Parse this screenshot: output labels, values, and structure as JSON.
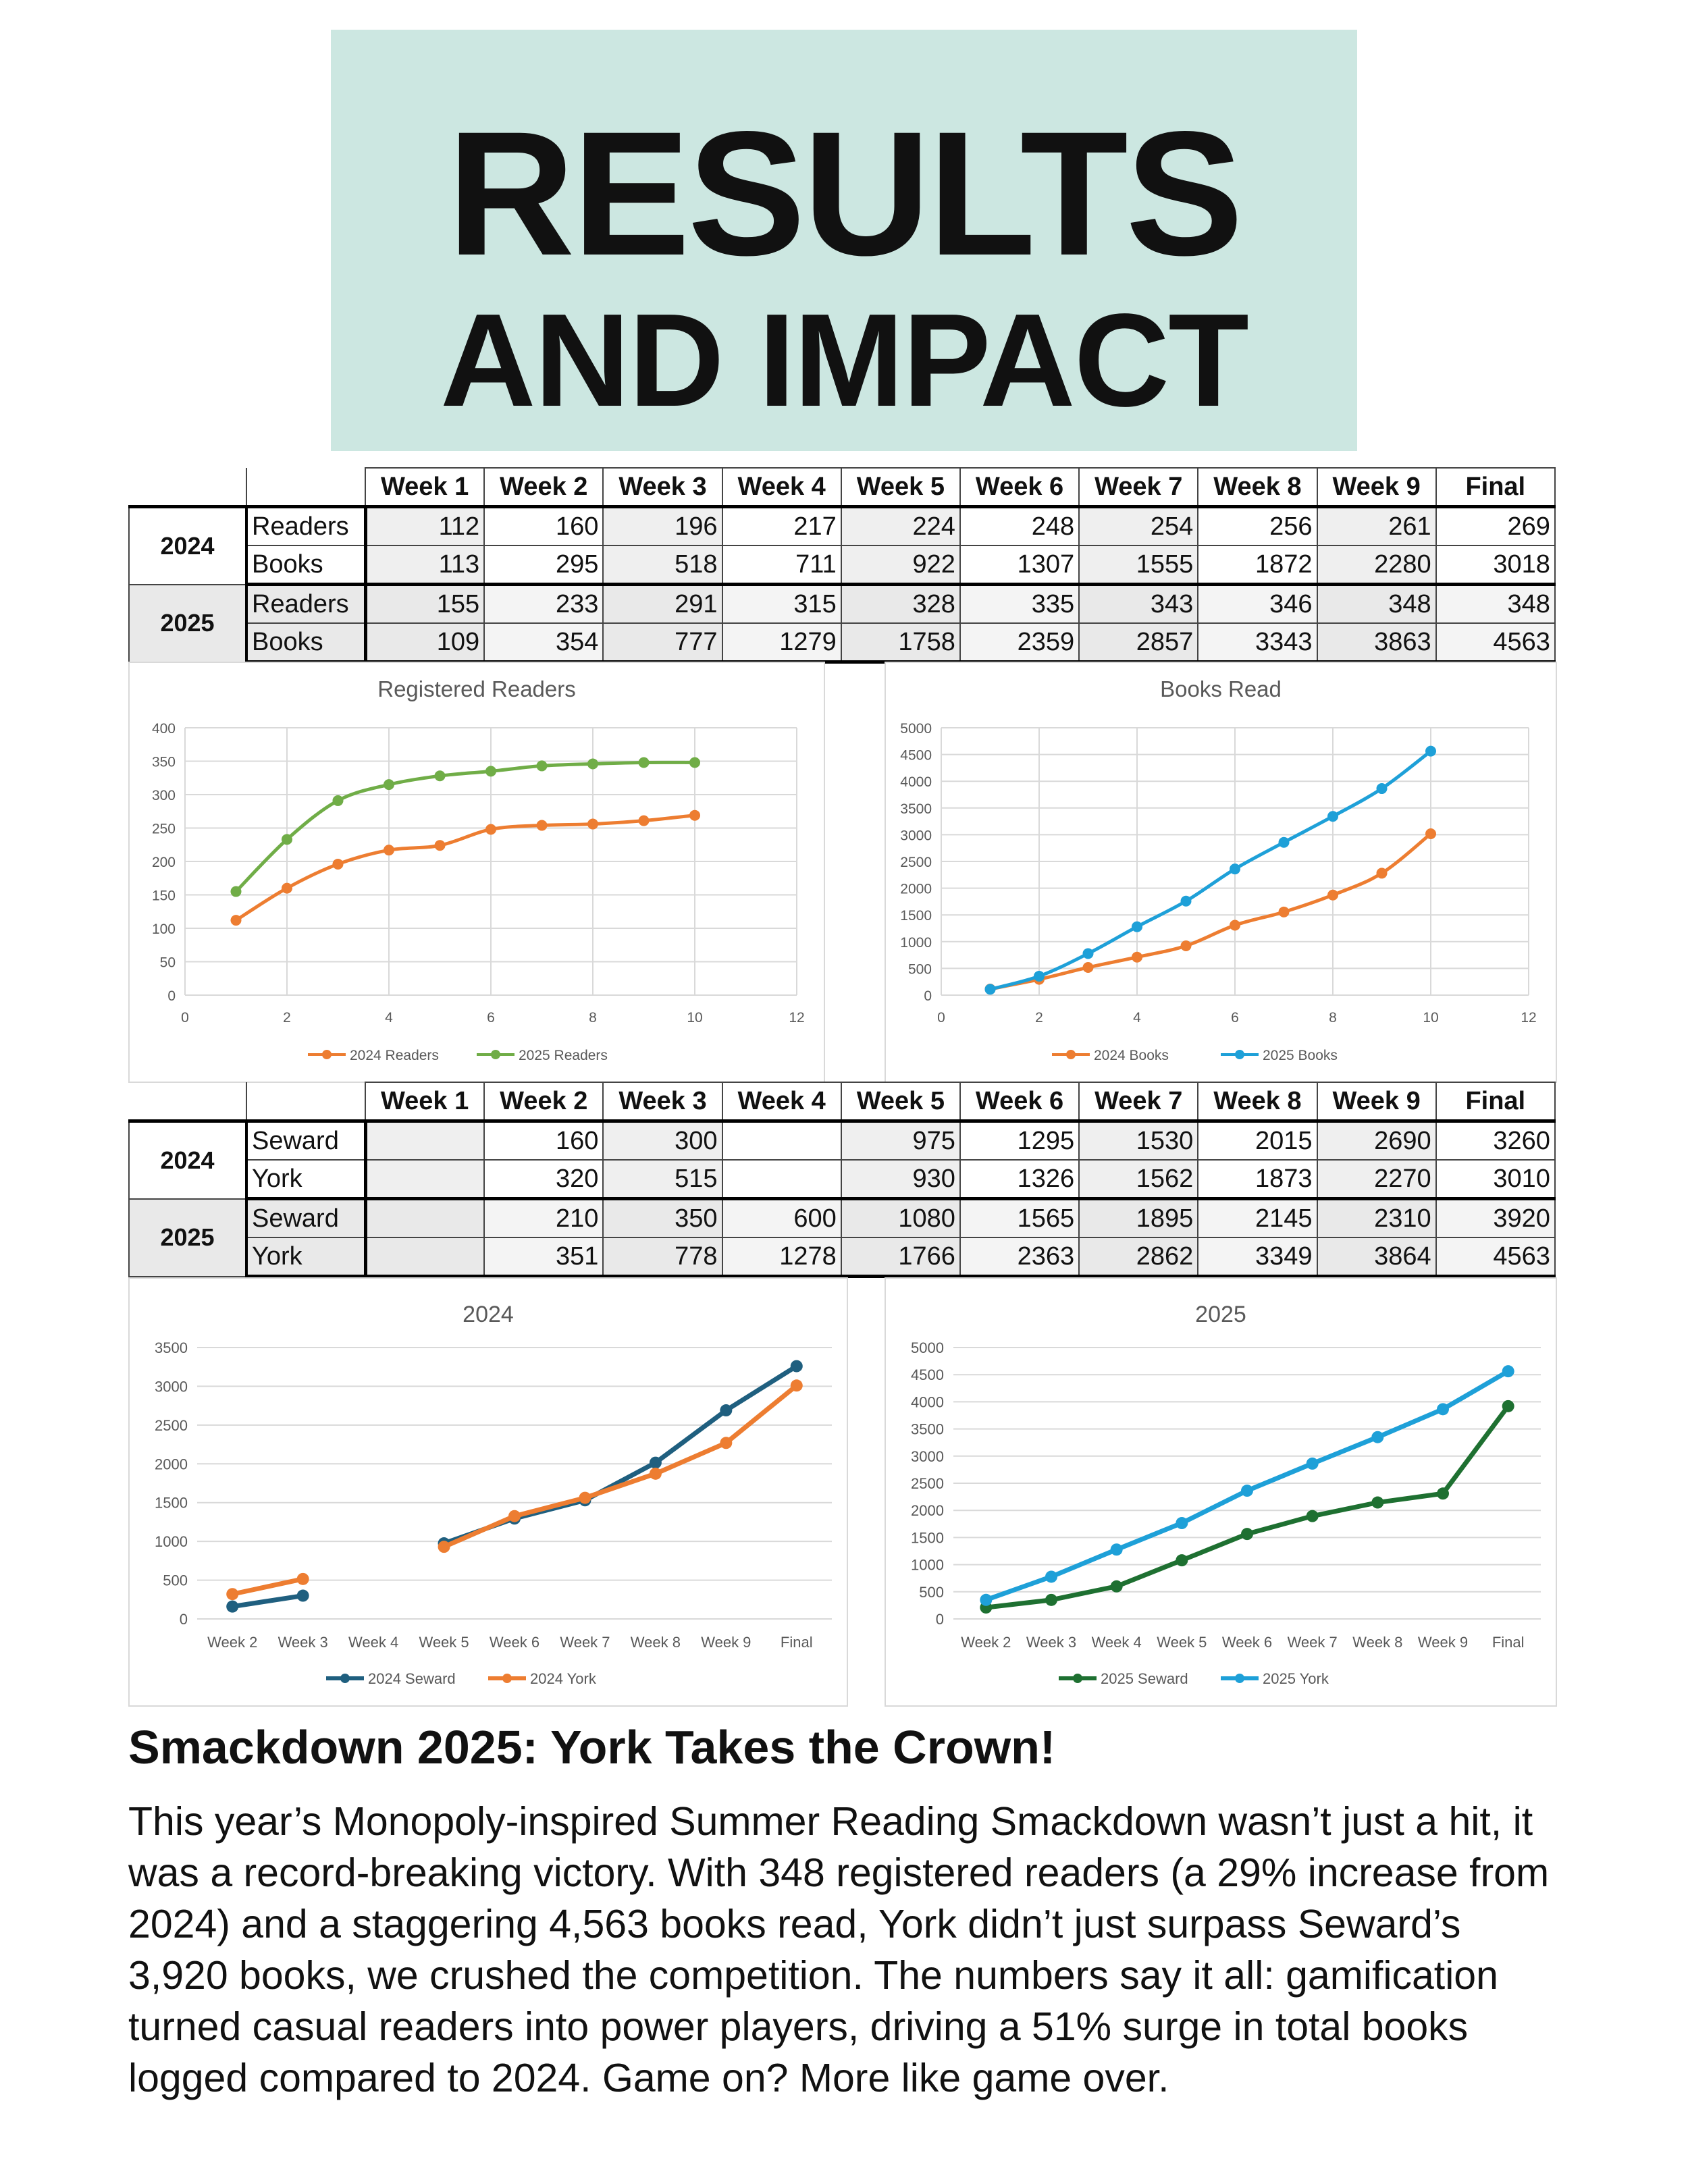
{
  "banner": {
    "line1": "RESULTS",
    "line2": "AND IMPACT"
  },
  "table1": {
    "headers": [
      "Week 1",
      "Week 2",
      "Week 3",
      "Week 4",
      "Week 5",
      "Week 6",
      "Week 7",
      "Week 8",
      "Week 9",
      "Final"
    ],
    "groups": [
      {
        "year": "2024",
        "rows": [
          {
            "label": "Readers",
            "values": [
              "112",
              "160",
              "196",
              "217",
              "224",
              "248",
              "254",
              "256",
              "261",
              "269"
            ]
          },
          {
            "label": "Books",
            "values": [
              "113",
              "295",
              "518",
              "711",
              "922",
              "1307",
              "1555",
              "1872",
              "2280",
              "3018"
            ]
          }
        ]
      },
      {
        "year": "2025",
        "rows": [
          {
            "label": "Readers",
            "values": [
              "155",
              "233",
              "291",
              "315",
              "328",
              "335",
              "343",
              "346",
              "348",
              "348"
            ]
          },
          {
            "label": "Books",
            "values": [
              "109",
              "354",
              "777",
              "1279",
              "1758",
              "2359",
              "2857",
              "3343",
              "3863",
              "4563"
            ]
          }
        ]
      }
    ]
  },
  "table2": {
    "headers": [
      "Week 1",
      "Week 2",
      "Week 3",
      "Week 4",
      "Week 5",
      "Week 6",
      "Week 7",
      "Week 8",
      "Week 9",
      "Final"
    ],
    "groups": [
      {
        "year": "2024",
        "rows": [
          {
            "label": "Seward",
            "values": [
              "",
              "160",
              "300",
              "",
              "975",
              "1295",
              "1530",
              "2015",
              "2690",
              "3260"
            ]
          },
          {
            "label": "York",
            "values": [
              "",
              "320",
              "515",
              "",
              "930",
              "1326",
              "1562",
              "1873",
              "2270",
              "3010"
            ]
          }
        ]
      },
      {
        "year": "2025",
        "rows": [
          {
            "label": "Seward",
            "values": [
              "",
              "210",
              "350",
              "600",
              "1080",
              "1565",
              "1895",
              "2145",
              "2310",
              "3920"
            ]
          },
          {
            "label": "York",
            "values": [
              "",
              "351",
              "778",
              "1278",
              "1766",
              "2363",
              "2862",
              "3349",
              "3864",
              "4563"
            ]
          }
        ]
      }
    ]
  },
  "chart_data": [
    {
      "id": "chart-readers",
      "type": "scatter",
      "smooth": true,
      "title": "Registered Readers",
      "xlim": [
        0,
        12
      ],
      "xticks": [
        0,
        2,
        4,
        6,
        8,
        10,
        12
      ],
      "ylim": [
        0,
        400
      ],
      "yticks": [
        0,
        50,
        100,
        150,
        200,
        250,
        300,
        350,
        400
      ],
      "grid": true,
      "legend": "bottom",
      "series": [
        {
          "name": "2024 Readers",
          "color": "#ed7d31",
          "x": [
            1,
            2,
            3,
            4,
            5,
            6,
            7,
            8,
            9,
            10
          ],
          "values": [
            112,
            160,
            196,
            217,
            224,
            248,
            254,
            256,
            261,
            269
          ]
        },
        {
          "name": "2025 Readers",
          "color": "#70ad47",
          "x": [
            1,
            2,
            3,
            4,
            5,
            6,
            7,
            8,
            9,
            10
          ],
          "values": [
            155,
            233,
            291,
            315,
            328,
            335,
            343,
            346,
            348,
            348
          ]
        }
      ]
    },
    {
      "id": "chart-books",
      "type": "scatter",
      "smooth": true,
      "title": "Books Read",
      "xlim": [
        0,
        12
      ],
      "xticks": [
        0,
        2,
        4,
        6,
        8,
        10,
        12
      ],
      "ylim": [
        0,
        5000
      ],
      "yticks": [
        0,
        500,
        1000,
        1500,
        2000,
        2500,
        3000,
        3500,
        4000,
        4500,
        5000
      ],
      "grid": true,
      "legend": "bottom",
      "series": [
        {
          "name": "2024 Books",
          "color": "#ed7d31",
          "x": [
            1,
            2,
            3,
            4,
            5,
            6,
            7,
            8,
            9,
            10
          ],
          "values": [
            113,
            295,
            518,
            711,
            922,
            1307,
            1555,
            1872,
            2280,
            3018
          ]
        },
        {
          "name": "2025 Books",
          "color": "#1ea0d8",
          "x": [
            1,
            2,
            3,
            4,
            5,
            6,
            7,
            8,
            9,
            10
          ],
          "values": [
            109,
            354,
            777,
            1279,
            1758,
            2359,
            2857,
            3343,
            3863,
            4563
          ]
        }
      ]
    },
    {
      "id": "chart-2024",
      "type": "line",
      "title": "2024",
      "categories": [
        "Week 2",
        "Week 3",
        "Week 4",
        "Week 5",
        "Week 6",
        "Week 7",
        "Week 8",
        "Week 9",
        "Final"
      ],
      "ylim": [
        0,
        3500
      ],
      "yticks": [
        0,
        500,
        1000,
        1500,
        2000,
        2500,
        3000,
        3500
      ],
      "grid": true,
      "legend": "bottom",
      "series": [
        {
          "name": "2024 Seward",
          "color": "#1f5f7f",
          "values": [
            160,
            300,
            null,
            975,
            1295,
            1530,
            2015,
            2690,
            3260
          ]
        },
        {
          "name": "2024 York",
          "color": "#ed7d31",
          "values": [
            320,
            515,
            null,
            930,
            1326,
            1562,
            1873,
            2270,
            3010
          ]
        }
      ]
    },
    {
      "id": "chart-2025",
      "type": "line",
      "title": "2025",
      "categories": [
        "Week 2",
        "Week 3",
        "Week 4",
        "Week 5",
        "Week 6",
        "Week 7",
        "Week 8",
        "Week 9",
        "Final"
      ],
      "ylim": [
        0,
        5000
      ],
      "yticks": [
        0,
        500,
        1000,
        1500,
        2000,
        2500,
        3000,
        3500,
        4000,
        4500,
        5000
      ],
      "grid": true,
      "legend": "bottom",
      "series": [
        {
          "name": "2025 Seward",
          "color": "#1e7031",
          "values": [
            210,
            350,
            600,
            1080,
            1565,
            1895,
            2145,
            2310,
            3920
          ]
        },
        {
          "name": "2025 York",
          "color": "#1ea0d8",
          "values": [
            351,
            778,
            1278,
            1766,
            2363,
            2862,
            3349,
            3864,
            4563
          ]
        }
      ]
    }
  ],
  "article": {
    "headline": "Smackdown 2025: York Takes the Crown!",
    "body": "This year’s Monopoly-inspired Summer Reading Smackdown wasn’t just a hit, it was a record-breaking victory. With 348 registered readers (a 29% increase from 2024) and a staggering 4,563 books read, York didn’t just surpass Seward’s 3,920 books, we crushed the competition. The numbers say it all: gamification turned casual readers into power players, driving a 51% surge in total books logged compared to 2024. Game on? More like game over."
  }
}
